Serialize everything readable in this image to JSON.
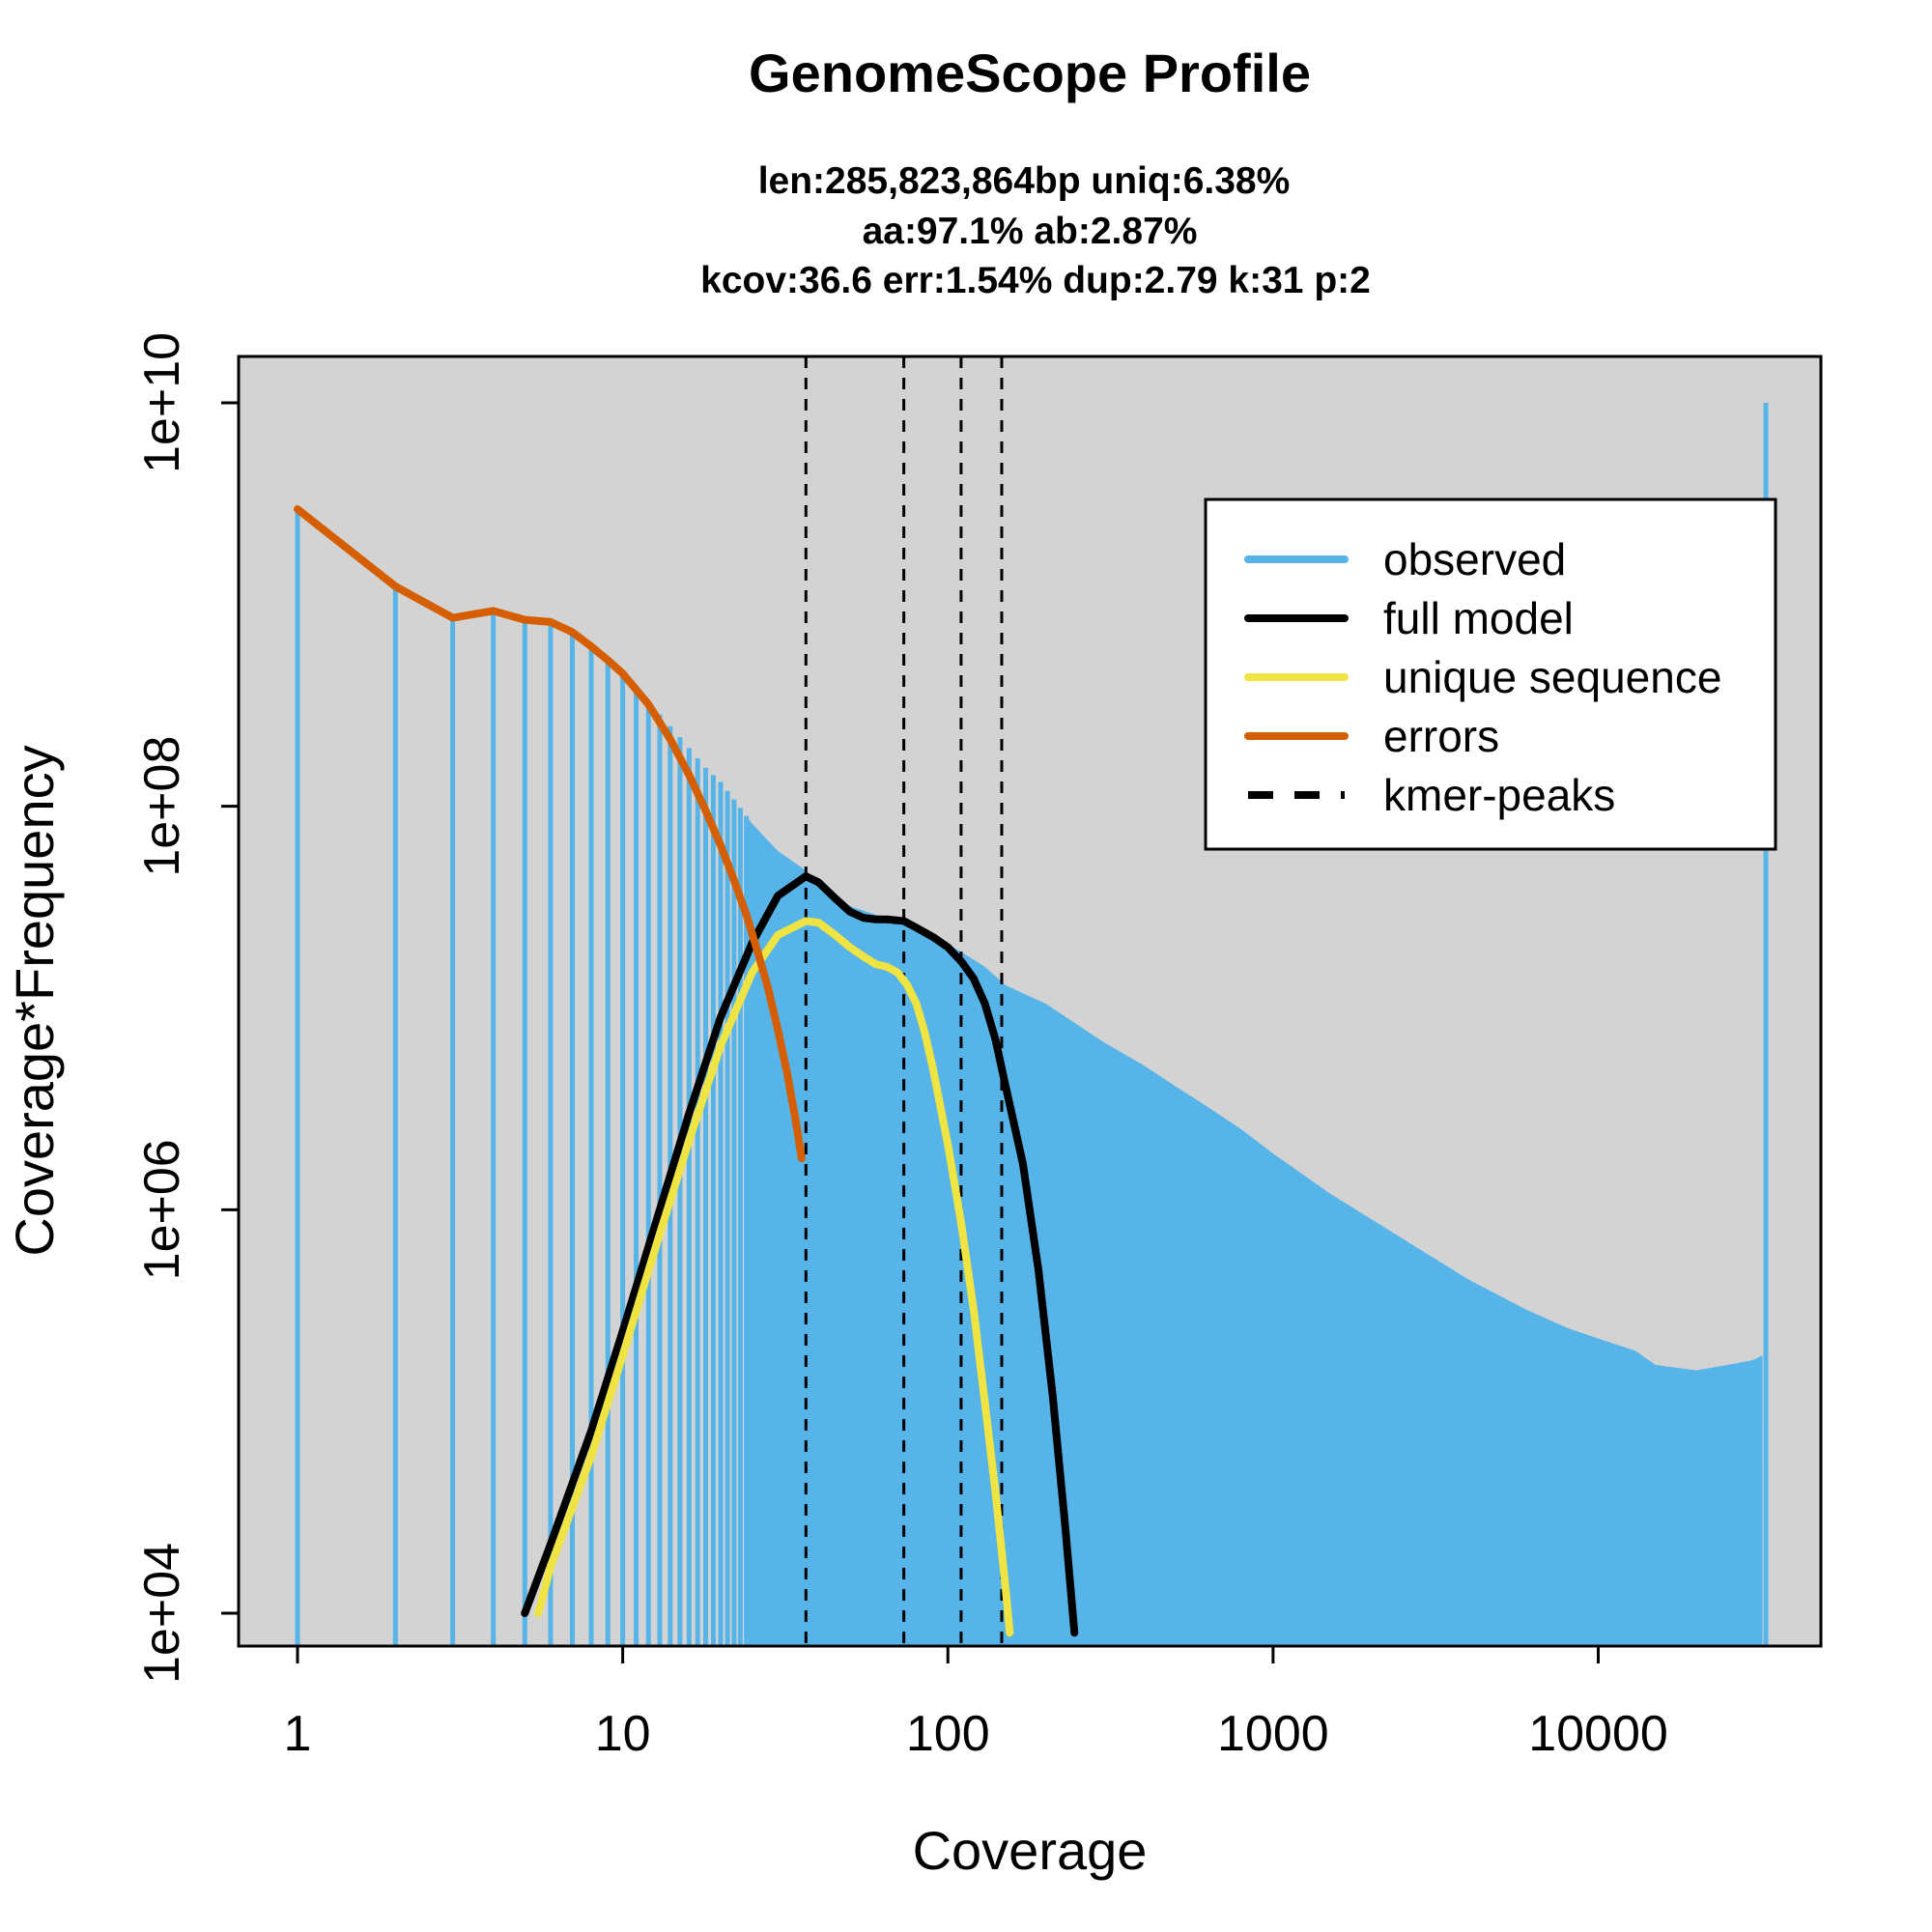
{
  "chart_data": {
    "type": "line",
    "title": "GenomeScope Profile",
    "subtitle_lines": [
      "len:285,823,864bp uniq:6.38%",
      "aa:97.1% ab:2.87%",
      "kcov:36.6 err:1.54%  dup:2.79  k:31 p:2"
    ],
    "xlabel": "Coverage",
    "ylabel": "Coverage*Frequency",
    "x_scale": "log",
    "y_scale": "log",
    "xlim": [
      1,
      32767
    ],
    "ylim": [
      10000,
      10000000000
    ],
    "x_ticks": [
      {
        "value": 1,
        "label": "1"
      },
      {
        "value": 10,
        "label": "10"
      },
      {
        "value": 100,
        "label": "100"
      },
      {
        "value": 1000,
        "label": "1000"
      },
      {
        "value": 10000,
        "label": "10000"
      }
    ],
    "y_ticks": [
      {
        "value": 10000,
        "label": "1e+04"
      },
      {
        "value": 1000000,
        "label": "1e+06"
      },
      {
        "value": 100000000,
        "label": "1e+08"
      },
      {
        "value": 10000000000,
        "label": "1e+10"
      }
    ],
    "background": "#d3d3d3",
    "legend_position": "top-right",
    "legend": [
      {
        "label": "observed",
        "color": "#56b4e9",
        "style": "solid"
      },
      {
        "label": "full model",
        "color": "#000000",
        "style": "solid"
      },
      {
        "label": "unique sequence",
        "color": "#f0e442",
        "style": "solid"
      },
      {
        "label": "errors",
        "color": "#d55e00",
        "style": "solid"
      },
      {
        "label": "kmer-peaks",
        "color": "#000000",
        "style": "dashed"
      }
    ],
    "kmer_peaks": [
      36.6,
      73.2,
      109.8,
      146.4
    ],
    "observed": {
      "color": "#56b4e9",
      "x": [
        1,
        2,
        3,
        4,
        5,
        6,
        7,
        8,
        9,
        10,
        12,
        15,
        18,
        20,
        22,
        25,
        30,
        36.6,
        40,
        50,
        60,
        73.2,
        90,
        109.8,
        130,
        150,
        200,
        300,
        400,
        500,
        600,
        800,
        1000,
        1500,
        2000,
        3000,
        4000,
        6000,
        8000,
        10000,
        13000,
        15000,
        20000,
        25000,
        30000,
        32000
      ],
      "y": [
        2970000000,
        1230000000,
        860000000,
        930000000,
        840000000,
        820000000,
        730000000,
        620000000,
        530000000,
        455000000,
        330000000,
        220000000,
        155000000,
        132000000,
        108000000,
        82000000,
        60000000,
        48000000,
        40000000,
        32000000,
        29000000,
        27000000,
        23000000,
        19000000,
        16000000,
        13000000,
        10500000,
        6800000,
        5200000,
        4100000,
        3400000,
        2500000,
        1900000,
        1200000,
        900000,
        600000,
        450000,
        320000,
        260000,
        230000,
        200000,
        170000,
        160000,
        170000,
        180000,
        190000
      ],
      "last_spike": {
        "x": 32767,
        "y": 10000000000
      }
    },
    "full_model": {
      "color": "#000000",
      "x": [
        5,
        6,
        8,
        10,
        13,
        16,
        20,
        25,
        30,
        36.6,
        40,
        45,
        50,
        55,
        60,
        65,
        73.2,
        80,
        90,
        100,
        110,
        120,
        130,
        140,
        150,
        170,
        190,
        210,
        230,
        245
      ],
      "y": [
        10000,
        22000,
        80000,
        250000,
        1000000,
        3000000,
        9000000,
        21000000,
        36000000,
        45000000,
        42000000,
        35000000,
        30000000,
        28000000,
        27500000,
        27500000,
        27000000,
        25000000,
        22500000,
        20000000,
        17000000,
        14000000,
        10500000,
        7000000,
        4200000,
        1700000,
        500000,
        120000,
        26000,
        8000
      ]
    },
    "unique_sequence": {
      "color": "#f0e442",
      "x": [
        5.5,
        6,
        8,
        10,
        13,
        16,
        20,
        25,
        30,
        36.6,
        40,
        45,
        50,
        55,
        60,
        65,
        70,
        75,
        80,
        85,
        90,
        100,
        110,
        120,
        130,
        140,
        150,
        155
      ],
      "y": [
        10000,
        17000,
        60000,
        190000,
        760000,
        2200000,
        6500000,
        15000000,
        23000000,
        27000000,
        26500000,
        23000000,
        20000000,
        18000000,
        16500000,
        16000000,
        15000000,
        13000000,
        10500000,
        7500000,
        5000000,
        2100000,
        850000,
        320000,
        110000,
        40000,
        14000,
        8000
      ]
    },
    "errors": {
      "color": "#d55e00",
      "x": [
        1,
        2,
        3,
        4,
        5,
        6,
        7,
        8,
        9,
        10,
        12,
        14,
        16,
        18,
        20,
        22,
        24,
        26,
        28,
        30,
        32,
        34,
        35.5
      ],
      "y": [
        2970000000,
        1230000000,
        860000000,
        930000000,
        840000000,
        820000000,
        730000000,
        620000000,
        530000000,
        455000000,
        320000000,
        215000000,
        143000000,
        95000000,
        64000000,
        43000000,
        29000000,
        19000000,
        12500000,
        7800000,
        4800000,
        2800000,
        1800000
      ]
    }
  }
}
